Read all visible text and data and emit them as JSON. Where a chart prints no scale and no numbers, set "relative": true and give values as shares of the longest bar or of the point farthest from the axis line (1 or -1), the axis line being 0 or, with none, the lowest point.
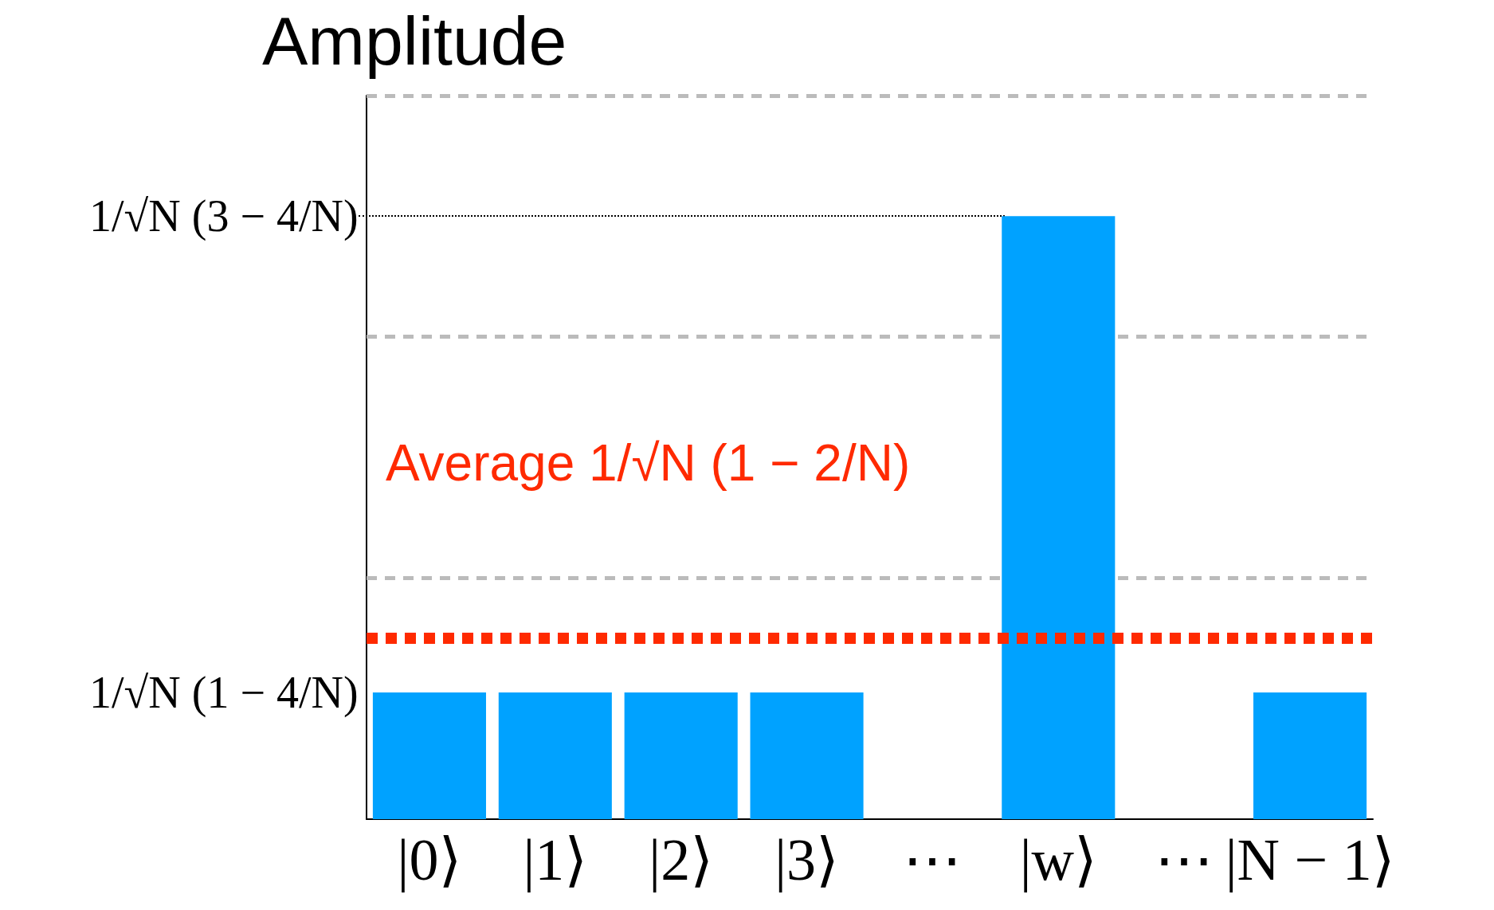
{
  "chart_data": {
    "type": "bar",
    "ylabel": "Amplitude",
    "categories": [
      "|0⟩",
      "|1⟩",
      "|2⟩",
      "|3⟩",
      "⋯",
      "|w⟩",
      "⋯",
      "|N − 1⟩"
    ],
    "values": [
      0.21,
      0.21,
      0.21,
      0.21,
      null,
      1,
      null,
      0.21
    ],
    "color": "#00a2ff",
    "relative": true,
    "ref_lines": [
      {
        "axis": "y",
        "value": 1.2,
        "color": "#bbbbbb",
        "line_style": "dashed"
      },
      {
        "axis": "y",
        "value": 0.8,
        "color": "#bbbbbb",
        "line_style": "dashed"
      },
      {
        "axis": "y",
        "value": 0.4,
        "color": "#bbbbbb",
        "line_style": "dashed"
      },
      {
        "axis": "y",
        "value": 0.3,
        "label": "Average 1/√N (1 − 2/N)",
        "color": "#ff2a00",
        "line_style": "dotted"
      }
    ],
    "annotations": [
      "1/√N (3 − 4/N)",
      {
        "text": "1/√N (1 − 4/N)",
        "x": "|0⟩",
        "y": 0.21
      }
    ]
  }
}
